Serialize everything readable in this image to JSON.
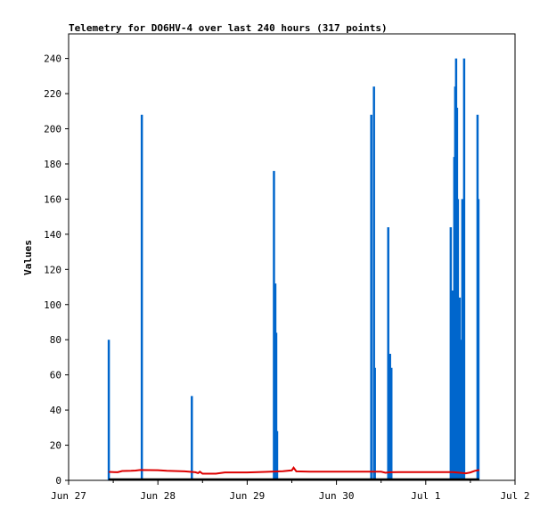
{
  "chart_data": {
    "type": "line",
    "title": "Telemetry for DO6HV-4 over last 240 hours (317 points)",
    "xlabel": "",
    "ylabel": "Values",
    "ylim": [
      0,
      254
    ],
    "yticks": [
      0,
      20,
      40,
      60,
      80,
      100,
      120,
      140,
      160,
      180,
      200,
      220,
      240
    ],
    "xlim": [
      0,
      5
    ],
    "xticks": [
      {
        "x": 0,
        "label": "Jun 27"
      },
      {
        "x": 0.5,
        "label": ""
      },
      {
        "x": 1,
        "label": "Jun 28"
      },
      {
        "x": 1.5,
        "label": ""
      },
      {
        "x": 2,
        "label": "Jun 29"
      },
      {
        "x": 2.5,
        "label": ""
      },
      {
        "x": 3,
        "label": "Jun 30"
      },
      {
        "x": 3.5,
        "label": ""
      },
      {
        "x": 4,
        "label": "Jul 1"
      },
      {
        "x": 4.5,
        "label": ""
      },
      {
        "x": 5,
        "label": "Jul 2"
      }
    ],
    "grid": false,
    "legend": "none",
    "series": [
      {
        "color": "#0066cc",
        "style": "spikes",
        "points": [
          [
            0.45,
            80
          ],
          [
            0.82,
            208
          ],
          [
            1.38,
            48
          ],
          [
            2.3,
            176
          ],
          [
            2.315,
            112
          ],
          [
            2.325,
            84
          ],
          [
            2.335,
            28
          ],
          [
            3.39,
            208
          ],
          [
            3.42,
            224
          ],
          [
            3.43,
            64
          ],
          [
            3.58,
            144
          ],
          [
            3.6,
            72
          ],
          [
            3.615,
            64
          ],
          [
            4.28,
            144
          ],
          [
            4.29,
            72
          ],
          [
            4.3,
            108
          ],
          [
            4.31,
            36
          ],
          [
            4.32,
            184
          ],
          [
            4.33,
            224
          ],
          [
            4.34,
            240
          ],
          [
            4.35,
            212
          ],
          [
            4.36,
            160
          ],
          [
            4.37,
            56
          ],
          [
            4.38,
            104
          ],
          [
            4.39,
            80
          ],
          [
            4.41,
            160
          ],
          [
            4.43,
            240
          ],
          [
            4.58,
            208
          ],
          [
            4.59,
            160
          ]
        ]
      },
      {
        "color": "#dd0000",
        "style": "line",
        "points": [
          [
            0.45,
            4.8
          ],
          [
            0.55,
            4.6
          ],
          [
            0.6,
            5.3
          ],
          [
            0.7,
            5.4
          ],
          [
            0.75,
            5.6
          ],
          [
            0.8,
            5.9
          ],
          [
            1.0,
            5.8
          ],
          [
            1.1,
            5.4
          ],
          [
            1.3,
            5.1
          ],
          [
            1.42,
            4.6
          ],
          [
            1.45,
            4.1
          ],
          [
            1.47,
            4.9
          ],
          [
            1.5,
            3.8
          ],
          [
            1.65,
            3.8
          ],
          [
            1.75,
            4.5
          ],
          [
            2.0,
            4.5
          ],
          [
            2.2,
            4.8
          ],
          [
            2.4,
            5.2
          ],
          [
            2.5,
            5.7
          ],
          [
            2.52,
            7.2
          ],
          [
            2.55,
            5.1
          ],
          [
            2.7,
            4.9
          ],
          [
            3.0,
            4.9
          ],
          [
            3.2,
            4.9
          ],
          [
            3.5,
            4.9
          ],
          [
            3.55,
            4.3
          ],
          [
            3.6,
            4.6
          ],
          [
            3.7,
            4.7
          ],
          [
            4.0,
            4.7
          ],
          [
            4.3,
            4.7
          ],
          [
            4.45,
            4.0
          ],
          [
            4.5,
            4.5
          ],
          [
            4.55,
            5.4
          ],
          [
            4.6,
            5.9
          ]
        ]
      },
      {
        "color": "#000000",
        "style": "line",
        "points": [
          [
            0.45,
            0.6
          ],
          [
            4.6,
            0.6
          ]
        ]
      }
    ]
  }
}
